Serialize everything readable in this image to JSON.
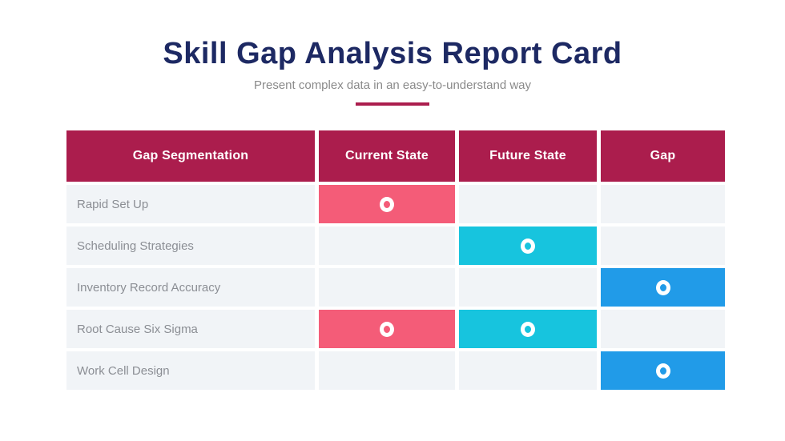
{
  "header": {
    "title": "Skill Gap Analysis Report Card",
    "subtitle": "Present complex data in an easy-to-understand way",
    "title_color": "#1D2963",
    "subtitle_color": "#8A8A8A",
    "divider_color": "#AB1D4D"
  },
  "table": {
    "header_bg": "#AB1D4D",
    "header_text_color": "#ffffff",
    "row_bg": "#F1F4F7",
    "label_text_color": "#8B8E94",
    "column_keys": [
      "current_state",
      "future_state",
      "gap"
    ],
    "mark_colors": {
      "current_state": "#F45C78",
      "future_state": "#17C4DE",
      "gap": "#219BE8"
    },
    "marker_icon": "ring-icon"
  },
  "chart_data": {
    "type": "table",
    "title": "Skill Gap Analysis Report Card",
    "subtitle": "Present complex data in an easy-to-understand way",
    "columns": [
      "Gap Segmentation",
      "Current State",
      "Future State",
      "Gap"
    ],
    "rows": [
      {
        "label": "Rapid Set Up",
        "marks": [
          "current_state"
        ]
      },
      {
        "label": "Scheduling Strategies",
        "marks": [
          "future_state"
        ]
      },
      {
        "label": "Inventory Record Accuracy",
        "marks": [
          "gap"
        ]
      },
      {
        "label": "Root Cause Six Sigma",
        "marks": [
          "current_state",
          "future_state"
        ]
      },
      {
        "label": "Work Cell Design",
        "marks": [
          "gap"
        ]
      }
    ],
    "legend": "colored cell with white ring = state marked for that row",
    "grid": "cells separated by white gaps"
  }
}
